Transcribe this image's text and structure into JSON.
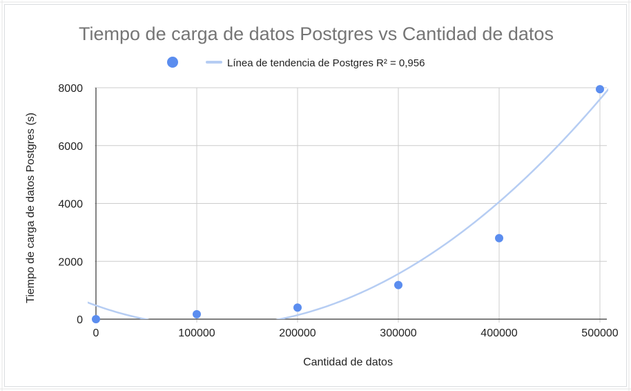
{
  "chart_data": {
    "type": "scatter",
    "title": "Tiempo de carga de datos Postgres vs Cantidad de datos",
    "xlabel": "Cantidad de datos",
    "ylabel": "Tiempo de carga de datos Postgres (s)",
    "xlim": [
      0,
      500000
    ],
    "ylim": [
      0,
      8000
    ],
    "xticks": [
      0,
      100000,
      200000,
      300000,
      400000,
      500000
    ],
    "yticks": [
      0,
      2000,
      4000,
      6000,
      8000
    ],
    "xtick_labels": [
      "0",
      "100000",
      "200000",
      "300000",
      "400000",
      "500000"
    ],
    "ytick_labels": [
      "0",
      "2000",
      "4000",
      "6000",
      "8000"
    ],
    "grid": true,
    "legend_position": "top",
    "series": [
      {
        "kind": "points",
        "color": "#5b8def",
        "x": [
          0,
          100000,
          200000,
          300000,
          400000,
          500000
        ],
        "y": [
          0,
          170,
          400,
          1180,
          2800,
          7950
        ]
      },
      {
        "kind": "trendline",
        "name": "Línea de tendencia de Postgres R² = 0,956",
        "trend_type": "polynomial",
        "degree": 2,
        "r_squared": "0,956",
        "color": "#b6cdf3",
        "coefficients": [
          472.14,
          -0.0122771,
          5.30714e-08
        ]
      }
    ]
  }
}
